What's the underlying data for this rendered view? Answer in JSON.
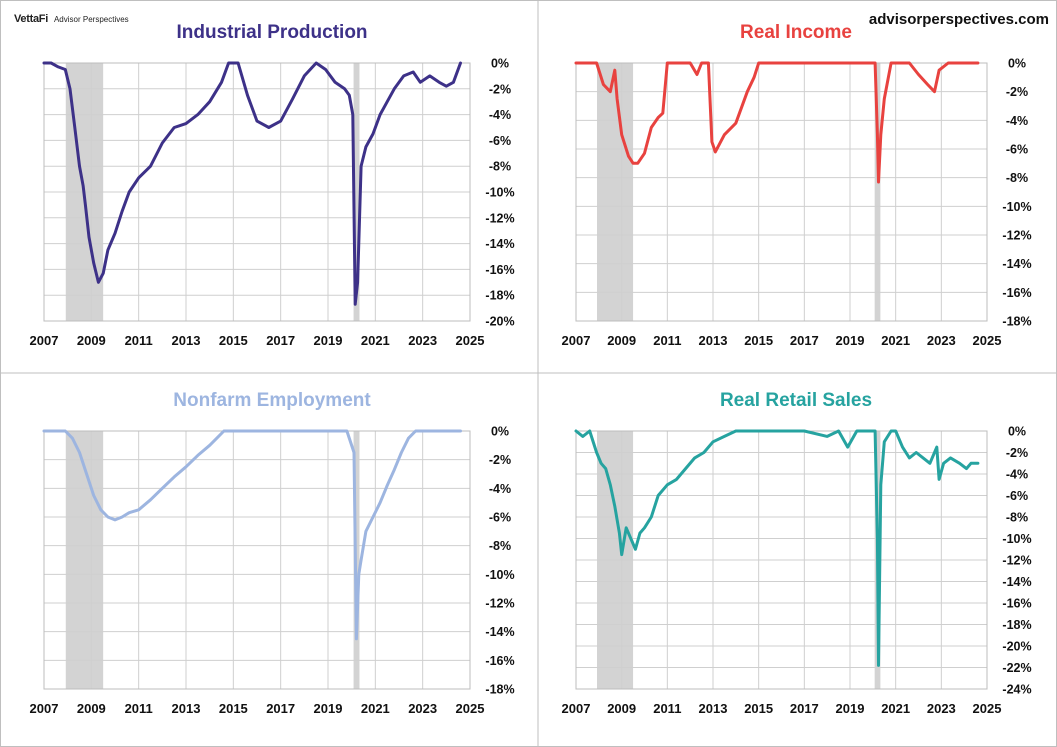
{
  "branding": {
    "logo": "VettaFi",
    "sub": "Advisor Perspectives",
    "site": "advisorperspectives.com"
  },
  "chart_data": [
    {
      "id": "ip",
      "type": "line",
      "title": "Industrial Production",
      "color": "#3d3188",
      "ylim": [
        -20,
        0
      ],
      "ystep": 2,
      "xlim": [
        2007,
        2025
      ],
      "xticks": [
        "2007",
        "2009",
        "2011",
        "2013",
        "2015",
        "2017",
        "2019",
        "2021",
        "2023",
        "2025"
      ],
      "yticks": [
        "0%",
        "-2%",
        "-4%",
        "-6%",
        "-8%",
        "-10%",
        "-12%",
        "-14%",
        "-16%",
        "-18%",
        "-20%"
      ],
      "recessions": [
        [
          2007.92,
          2009.5
        ],
        [
          2020.08,
          2020.33
        ]
      ],
      "series": {
        "x": [
          2007.0,
          2007.3,
          2007.6,
          2007.9,
          2008.1,
          2008.3,
          2008.5,
          2008.65,
          2008.75,
          2008.9,
          2009.1,
          2009.3,
          2009.5,
          2009.7,
          2010.0,
          2010.3,
          2010.6,
          2011.0,
          2011.5,
          2012.0,
          2012.5,
          2013.0,
          2013.5,
          2014.0,
          2014.5,
          2014.8,
          2015.2,
          2015.6,
          2016.0,
          2016.5,
          2017.0,
          2017.5,
          2018.0,
          2018.5,
          2018.9,
          2019.3,
          2019.7,
          2019.9,
          2020.05,
          2020.15,
          2020.25,
          2020.4,
          2020.6,
          2020.9,
          2021.2,
          2021.5,
          2021.8,
          2022.2,
          2022.6,
          2022.9,
          2023.3,
          2023.7,
          2024.0,
          2024.3,
          2024.6
        ],
        "y": [
          0.0,
          0.0,
          -0.3,
          -0.5,
          -2.0,
          -5.0,
          -8.0,
          -9.5,
          -11.0,
          -13.5,
          -15.5,
          -17.0,
          -16.3,
          -14.5,
          -13.2,
          -11.5,
          -10.0,
          -8.9,
          -8.0,
          -6.2,
          -5.0,
          -4.7,
          -4.0,
          -3.0,
          -1.5,
          0.0,
          0.0,
          -2.5,
          -4.5,
          -5.0,
          -4.5,
          -2.8,
          -1.0,
          0.0,
          -0.5,
          -1.5,
          -2.0,
          -2.5,
          -4.0,
          -18.7,
          -17.0,
          -8.0,
          -6.5,
          -5.5,
          -4.0,
          -3.0,
          -2.0,
          -1.0,
          -0.7,
          -1.5,
          -1.0,
          -1.5,
          -1.8,
          -1.5,
          0.0
        ]
      }
    },
    {
      "id": "ri",
      "type": "line",
      "title": "Real Income",
      "color": "#e8423f",
      "ylim": [
        -18,
        0
      ],
      "ystep": 2,
      "xlim": [
        2007,
        2025
      ],
      "xticks": [
        "2007",
        "2009",
        "2011",
        "2013",
        "2015",
        "2017",
        "2019",
        "2021",
        "2023",
        "2025"
      ],
      "yticks": [
        "0%",
        "-2%",
        "-4%",
        "-6%",
        "-8%",
        "-10%",
        "-12%",
        "-14%",
        "-16%",
        "-18%"
      ],
      "recessions": [
        [
          2007.92,
          2009.5
        ],
        [
          2020.08,
          2020.33
        ]
      ],
      "series": {
        "x": [
          2007.0,
          2007.5,
          2007.9,
          2008.2,
          2008.5,
          2008.7,
          2008.8,
          2009.0,
          2009.3,
          2009.5,
          2009.7,
          2010.0,
          2010.3,
          2010.6,
          2010.8,
          2011.0,
          2011.2,
          2011.5,
          2012.0,
          2012.3,
          2012.5,
          2012.8,
          2012.95,
          2013.1,
          2013.5,
          2014.0,
          2014.5,
          2014.8,
          2015.0,
          2016.0,
          2017.0,
          2018.0,
          2019.0,
          2019.5,
          2019.9,
          2020.1,
          2020.2,
          2020.25,
          2020.35,
          2020.5,
          2020.8,
          2021.2,
          2021.6,
          2022.0,
          2022.4,
          2022.7,
          2022.9,
          2023.3,
          2023.8,
          2024.3,
          2024.6
        ],
        "y": [
          0.0,
          0.0,
          0.0,
          -1.5,
          -2.0,
          -0.5,
          -2.5,
          -5.0,
          -6.5,
          -7.0,
          -7.0,
          -6.3,
          -4.5,
          -3.8,
          -3.5,
          0.0,
          0.0,
          0.0,
          0.0,
          -0.8,
          0.0,
          0.0,
          -5.5,
          -6.2,
          -5.0,
          -4.2,
          -2.0,
          -1.0,
          0.0,
          0.0,
          0.0,
          0.0,
          0.0,
          0.0,
          0.0,
          0.0,
          -5.0,
          -8.3,
          -5.0,
          -2.5,
          0.0,
          0.0,
          0.0,
          -0.8,
          -1.5,
          -2.0,
          -0.5,
          0.0,
          0.0,
          0.0,
          0.0
        ]
      }
    },
    {
      "id": "ne",
      "type": "line",
      "title": "Nonfarm Employment",
      "color": "#9db5e0",
      "ylim": [
        -18,
        0
      ],
      "ystep": 2,
      "xlim": [
        2007,
        2025
      ],
      "xticks": [
        "2007",
        "2009",
        "2011",
        "2013",
        "2015",
        "2017",
        "2019",
        "2021",
        "2023",
        "2025"
      ],
      "yticks": [
        "0%",
        "-2%",
        "-4%",
        "-6%",
        "-8%",
        "-10%",
        "-12%",
        "-14%",
        "-16%",
        "-18%"
      ],
      "recessions": [
        [
          2007.92,
          2009.5
        ],
        [
          2020.08,
          2020.33
        ]
      ],
      "series": {
        "x": [
          2007.0,
          2007.9,
          2008.2,
          2008.5,
          2008.8,
          2009.1,
          2009.4,
          2009.7,
          2010.0,
          2010.3,
          2010.6,
          2011.0,
          2011.5,
          2012.0,
          2012.5,
          2013.0,
          2013.5,
          2014.0,
          2014.3,
          2014.6,
          2015.0,
          2016.0,
          2017.0,
          2018.0,
          2019.0,
          2019.8,
          2020.1,
          2020.2,
          2020.3,
          2020.4,
          2020.6,
          2020.9,
          2021.2,
          2021.5,
          2021.8,
          2022.1,
          2022.4,
          2022.7,
          2023.0,
          2024.0,
          2024.6
        ],
        "y": [
          0.0,
          0.0,
          -0.5,
          -1.5,
          -3.0,
          -4.5,
          -5.5,
          -6.0,
          -6.2,
          -6.0,
          -5.7,
          -5.5,
          -4.8,
          -4.0,
          -3.2,
          -2.5,
          -1.7,
          -1.0,
          -0.5,
          0.0,
          0.0,
          0.0,
          0.0,
          0.0,
          0.0,
          0.0,
          -1.5,
          -14.5,
          -10.0,
          -9.0,
          -7.0,
          -6.0,
          -5.0,
          -3.8,
          -2.7,
          -1.5,
          -0.5,
          0.0,
          0.0,
          0.0,
          0.0
        ]
      }
    },
    {
      "id": "rrs",
      "type": "line",
      "title": "Real Retail Sales",
      "color": "#26a3a0",
      "ylim": [
        -24,
        0
      ],
      "ystep": 2,
      "xlim": [
        2007,
        2025
      ],
      "xticks": [
        "2007",
        "2009",
        "2011",
        "2013",
        "2015",
        "2017",
        "2019",
        "2021",
        "2023",
        "2025"
      ],
      "yticks": [
        "0%",
        "-2%",
        "-4%",
        "-6%",
        "-8%",
        "-10%",
        "-12%",
        "-14%",
        "-16%",
        "-18%",
        "-20%",
        "-22%",
        "-24%"
      ],
      "recessions": [
        [
          2007.92,
          2009.5
        ],
        [
          2020.08,
          2020.33
        ]
      ],
      "series": {
        "x": [
          2007.0,
          2007.3,
          2007.6,
          2007.9,
          2008.1,
          2008.3,
          2008.5,
          2008.7,
          2008.9,
          2009.0,
          2009.2,
          2009.4,
          2009.6,
          2009.8,
          2010.0,
          2010.3,
          2010.6,
          2011.0,
          2011.4,
          2011.8,
          2012.2,
          2012.6,
          2013.0,
          2013.5,
          2014.0,
          2014.5,
          2015.0,
          2016.0,
          2017.0,
          2018.0,
          2018.5,
          2018.9,
          2019.3,
          2019.8,
          2020.1,
          2020.2,
          2020.25,
          2020.35,
          2020.5,
          2020.8,
          2021.0,
          2021.3,
          2021.6,
          2021.9,
          2022.2,
          2022.5,
          2022.8,
          2022.9,
          2023.1,
          2023.4,
          2023.8,
          2024.1,
          2024.3,
          2024.6
        ],
        "y": [
          0.0,
          -0.5,
          0.0,
          -2.0,
          -3.0,
          -3.5,
          -5.0,
          -7.0,
          -9.5,
          -11.5,
          -9.0,
          -10.0,
          -11.0,
          -9.5,
          -9.0,
          -8.0,
          -6.0,
          -5.0,
          -4.5,
          -3.5,
          -2.5,
          -2.0,
          -1.0,
          -0.5,
          0.0,
          0.0,
          0.0,
          0.0,
          0.0,
          -0.5,
          0.0,
          -1.5,
          0.0,
          0.0,
          0.0,
          -10.0,
          -21.8,
          -5.0,
          -1.0,
          0.0,
          0.0,
          -1.5,
          -2.5,
          -2.0,
          -2.5,
          -3.0,
          -1.5,
          -4.5,
          -3.0,
          -2.5,
          -3.0,
          -3.5,
          -3.0,
          -3.0
        ]
      }
    }
  ]
}
